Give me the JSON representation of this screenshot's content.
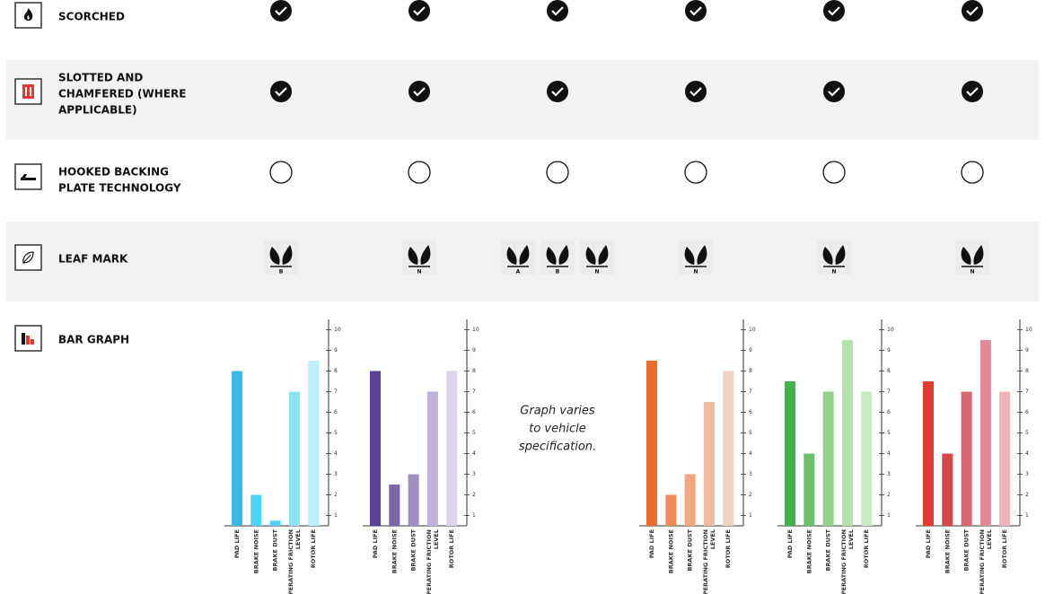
{
  "rows": [
    {
      "label": [
        "SCORCHED"
      ],
      "mark": "filled"
    },
    {
      "label": [
        "SLOTTED AND",
        "CHAMFERED (WHERE",
        "APPLICABLE)"
      ],
      "mark": "filled"
    },
    {
      "label": [
        "HOOKED BACKING",
        "PLATE TECHNOLOGY"
      ],
      "mark": "empty"
    },
    {
      "label": [
        "LEAF MARK"
      ],
      "leaf_marks": [
        [
          "B"
        ],
        [
          "N"
        ],
        [
          "A",
          "B",
          "N"
        ],
        [
          "N"
        ],
        [
          "N"
        ],
        [
          "N"
        ]
      ]
    },
    {
      "label": [
        "BAR GRAPH"
      ],
      "note": [
        "Graph varies",
        "to vehicle",
        "specification."
      ],
      "bar_graph": {
        "categories": [
          [
            "PAD LIFE"
          ],
          [
            "BRAKE NOISE"
          ],
          [
            "BRAKE DUST"
          ],
          [
            "OPERATING FRICTION",
            "LEVEL"
          ],
          [
            "ROTOR LIFE"
          ]
        ],
        "ylim": [
          0.5,
          10.5
        ],
        "yticks": [
          1,
          2,
          3,
          4,
          5,
          6,
          7,
          8,
          9,
          10
        ],
        "charts": [
          {
            "colors": [
              "#3bb7e8",
              "#4fd3f7",
              "#4fd3f7",
              "#8be3f6",
              "#bdeefb"
            ],
            "values": [
              8,
              2,
              0.75,
              7,
              8.5
            ]
          },
          {
            "colors": [
              "#5b3f99",
              "#7b66a8",
              "#9d8fc2",
              "#c0b2dc",
              "#dcd3ef"
            ],
            "values": [
              8,
              2.5,
              3,
              7,
              8
            ]
          },
          null,
          {
            "colors": [
              "#ef6a2d",
              "#f08a55",
              "#f3a67f",
              "#efbba0",
              "#f2d2c2"
            ],
            "values": [
              8.5,
              2,
              3,
              6.5,
              8
            ]
          },
          {
            "colors": [
              "#40b24b",
              "#6cc06a",
              "#93d08c",
              "#b7e2ae",
              "#cbe9c4"
            ],
            "values": [
              7.5,
              4,
              7,
              9.5,
              7
            ]
          },
          {
            "colors": [
              "#e23a33",
              "#d4474a",
              "#d76670",
              "#e38b92",
              "#f0b4b8"
            ],
            "values": [
              7.5,
              4,
              7,
              9.5,
              7
            ]
          }
        ]
      }
    }
  ]
}
